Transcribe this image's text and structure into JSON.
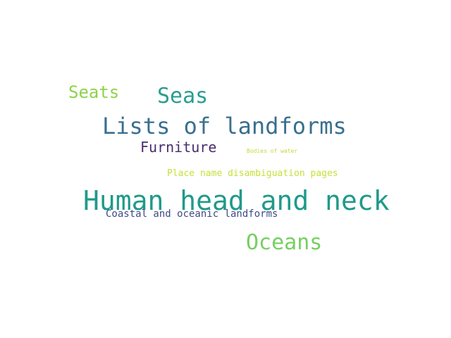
{
  "words": [
    {
      "text": "Seats",
      "color": "#8fd24a"
    },
    {
      "text": "Seas",
      "color": "#2a9d8f"
    },
    {
      "text": "Lists of landforms",
      "color": "#3a6f8f"
    },
    {
      "text": "Furniture",
      "color": "#4a2d6b"
    },
    {
      "text": "Bodies of water",
      "color": "#c7d63a"
    },
    {
      "text": "Place name disambiguation pages",
      "color": "#c7e03a"
    },
    {
      "text": "Human head and neck",
      "color": "#1f9a8a"
    },
    {
      "text": "Coastal and oceanic landforms",
      "color": "#3f4a86"
    },
    {
      "text": "Oceans",
      "color": "#76cf62"
    }
  ]
}
